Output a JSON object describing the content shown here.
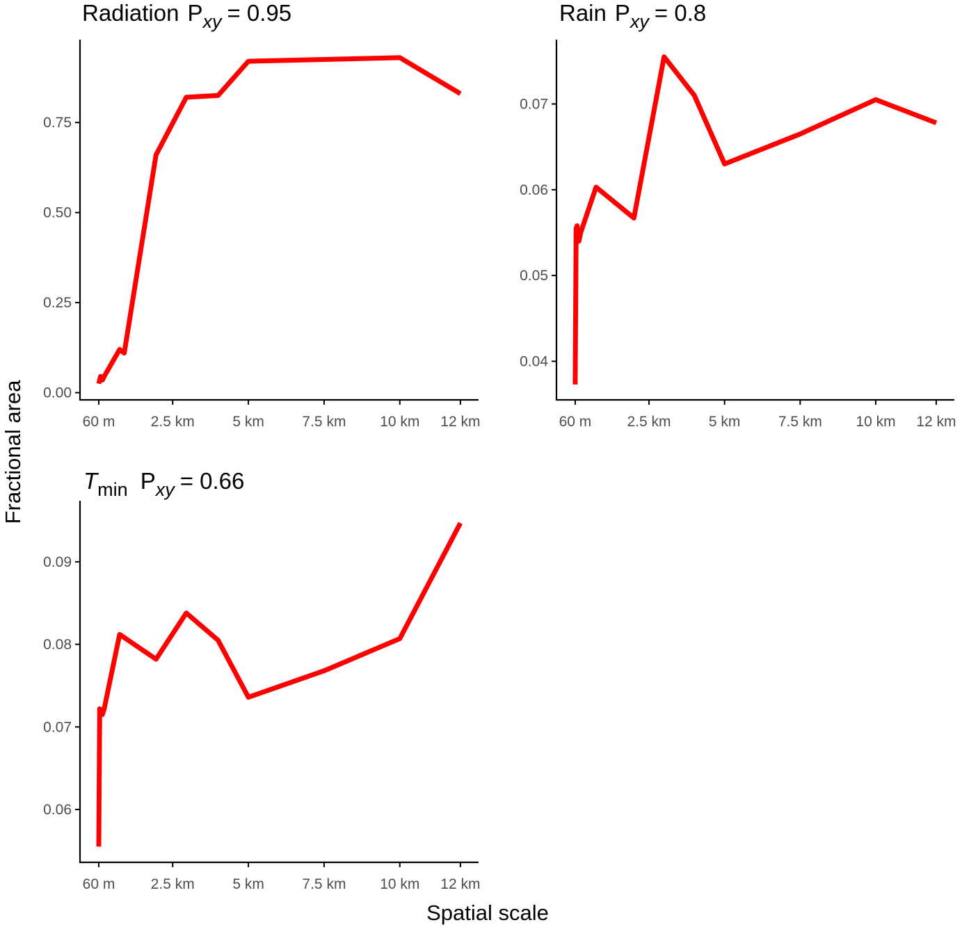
{
  "figure": {
    "xlabel": "Spatial scale",
    "ylabel": "Fractional area",
    "line_color": "#ff0000",
    "axis_color": "#000000",
    "tick_label_color": "#4d4d4d"
  },
  "chart_data": [
    {
      "type": "line",
      "title": {
        "main": "Radiation",
        "p_label": "P",
        "p_sub": "xy",
        "eq": "= 0.95"
      },
      "x_unit": "m",
      "x_ticks": [
        {
          "value": 60,
          "label": "60 m"
        },
        {
          "value": 2500,
          "label": "2.5 km"
        },
        {
          "value": 5000,
          "label": "5 km"
        },
        {
          "value": 7500,
          "label": "7.5 km"
        },
        {
          "value": 10000,
          "label": "10 km"
        },
        {
          "value": 12000,
          "label": "12 km"
        }
      ],
      "y_ticks": [
        {
          "value": 0.0,
          "label": "0.00"
        },
        {
          "value": 0.25,
          "label": "0.25"
        },
        {
          "value": 0.5,
          "label": "0.50"
        },
        {
          "value": 0.75,
          "label": "0.75"
        }
      ],
      "xlim": [
        -560,
        12600
      ],
      "ylim": [
        -0.02,
        0.98
      ],
      "series": [
        {
          "x": [
            60,
            120,
            180,
            240,
            750,
            900,
            1950,
            2950,
            4000,
            5000,
            10000,
            12000
          ],
          "y": [
            0.025,
            0.045,
            0.035,
            0.045,
            0.12,
            0.11,
            0.66,
            0.82,
            0.825,
            0.92,
            0.93,
            0.83
          ]
        }
      ]
    },
    {
      "type": "line",
      "title": {
        "main": "Rain",
        "p_label": "P",
        "p_sub": "xy",
        "eq": "= 0.8"
      },
      "x_unit": "m",
      "x_ticks": [
        {
          "value": 60,
          "label": "60 m"
        },
        {
          "value": 2500,
          "label": "2.5 km"
        },
        {
          "value": 5000,
          "label": "5 km"
        },
        {
          "value": 7500,
          "label": "7.5 km"
        },
        {
          "value": 10000,
          "label": "10 km"
        },
        {
          "value": 12000,
          "label": "12 km"
        }
      ],
      "y_ticks": [
        {
          "value": 0.04,
          "label": "0.04"
        },
        {
          "value": 0.05,
          "label": "0.05"
        },
        {
          "value": 0.06,
          "label": "0.06"
        },
        {
          "value": 0.07,
          "label": "0.07"
        }
      ],
      "xlim": [
        -560,
        12600
      ],
      "ylim": [
        0.0355,
        0.0775
      ],
      "series": [
        {
          "x": [
            60,
            90,
            120,
            180,
            240,
            750,
            2000,
            3000,
            4000,
            5000,
            7500,
            10000,
            12000
          ],
          "y": [
            0.0373,
            0.0555,
            0.0558,
            0.054,
            0.055,
            0.0603,
            0.0567,
            0.0755,
            0.071,
            0.063,
            0.0665,
            0.0705,
            0.0678
          ]
        }
      ]
    },
    {
      "type": "line",
      "title": {
        "main": "T",
        "main_sub": "min",
        "p_label": "P",
        "p_sub": "xy",
        "eq": "= 0.66"
      },
      "x_unit": "m",
      "x_ticks": [
        {
          "value": 60,
          "label": "60 m"
        },
        {
          "value": 2500,
          "label": "2.5 km"
        },
        {
          "value": 5000,
          "label": "5 km"
        },
        {
          "value": 7500,
          "label": "7.5 km"
        },
        {
          "value": 10000,
          "label": "10 km"
        },
        {
          "value": 12000,
          "label": "12 km"
        }
      ],
      "y_ticks": [
        {
          "value": 0.06,
          "label": "0.06"
        },
        {
          "value": 0.07,
          "label": "0.07"
        },
        {
          "value": 0.08,
          "label": "0.08"
        },
        {
          "value": 0.09,
          "label": "0.09"
        }
      ],
      "xlim": [
        -560,
        12600
      ],
      "ylim": [
        0.0536,
        0.0974
      ],
      "series": [
        {
          "x": [
            60,
            90,
            120,
            180,
            240,
            750,
            1950,
            2950,
            4000,
            5000,
            7500,
            10000,
            12000
          ],
          "y": [
            0.0555,
            0.0722,
            0.072,
            0.0715,
            0.0722,
            0.0812,
            0.0782,
            0.0838,
            0.0805,
            0.0736,
            0.0768,
            0.0807,
            0.0947
          ]
        }
      ]
    }
  ]
}
